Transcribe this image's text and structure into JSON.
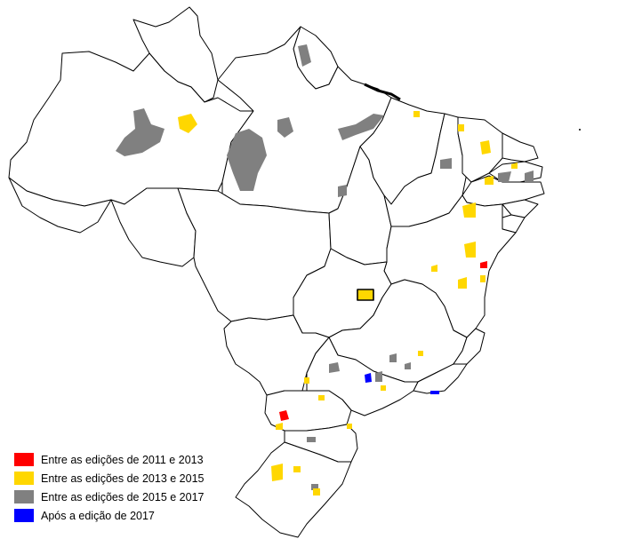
{
  "colors": {
    "period_2011_2013": "#ff0000",
    "period_2013_2015": "#ffd700",
    "period_2015_2017": "#808080",
    "after_2017": "#0000ff",
    "boundary": "#000000",
    "background": "#ffffff"
  },
  "legend": {
    "items": [
      {
        "label": "Entre as edições de 2011 e 2013",
        "color": "#ff0000"
      },
      {
        "label": "Entre as edições de 2013 e 2015",
        "color": "#ffd700"
      },
      {
        "label": "Entre as edições de 2015 e 2017",
        "color": "#808080"
      },
      {
        "label": "Após a edição de 2017",
        "color": "#0000ff"
      }
    ]
  }
}
